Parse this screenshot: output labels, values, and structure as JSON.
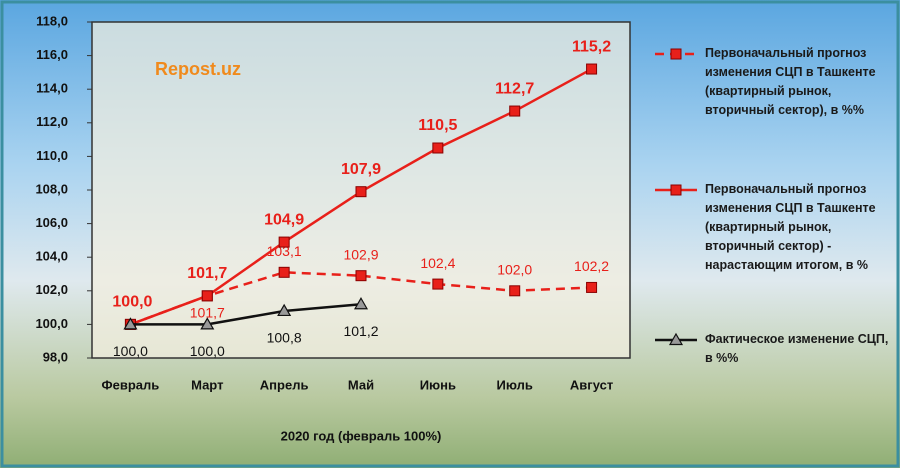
{
  "chart_data": {
    "type": "line",
    "watermark": "Repost.uz",
    "x_label": "2020 год (февраль 100%)",
    "categories": [
      "Февраль",
      "Март",
      "Апрель",
      "Май",
      "Июнь",
      "Июль",
      "Август"
    ],
    "ylim": [
      98,
      118
    ],
    "yticks": [
      {
        "value": 98,
        "label": "98,0"
      },
      {
        "value": 100,
        "label": "100,0"
      },
      {
        "value": 102,
        "label": "102,0"
      },
      {
        "value": 104,
        "label": "104,0"
      },
      {
        "value": 106,
        "label": "106,0"
      },
      {
        "value": 108,
        "label": "108,0"
      },
      {
        "value": 110,
        "label": "110,0"
      },
      {
        "value": 112,
        "label": "112,0"
      },
      {
        "value": 114,
        "label": "114,0"
      },
      {
        "value": 116,
        "label": "116,0"
      },
      {
        "value": 118,
        "label": "118,0"
      }
    ],
    "series": [
      {
        "name": "Первоначальный прогноз изменения СЦП в Ташкенте (квартирный рынок, вторичный сектор), в %%",
        "color": "#e8201a",
        "dash": true,
        "marker": "square",
        "values": [
          100.0,
          101.7,
          103.1,
          102.9,
          102.4,
          102.0,
          102.2
        ],
        "value_labels": [
          null,
          "101,7",
          "103,1",
          "102,9",
          "102,4",
          "102,0",
          "102,2"
        ]
      },
      {
        "name": "Первоначальный прогноз изменения СЦП в Ташкенте (квартирный рынок, вторичный сектор) - нарастающим итогом, в %",
        "color": "#e8201a",
        "dash": false,
        "marker": "square",
        "values": [
          100.0,
          101.7,
          104.9,
          107.9,
          110.5,
          112.7,
          115.2
        ],
        "value_labels": [
          "100,0",
          "101,7",
          "104,9",
          "107,9",
          "110,5",
          "112,7",
          "115,2"
        ]
      },
      {
        "name": "Фактическое изменение СЦП, в %%",
        "color": "#111111",
        "dash": false,
        "marker": "triangle",
        "values": [
          100.0,
          100.0,
          100.8,
          101.2,
          null,
          null,
          null
        ],
        "value_labels": [
          "100,0",
          "100,0",
          "100,8",
          "101,2",
          null,
          null,
          null
        ]
      }
    ]
  }
}
